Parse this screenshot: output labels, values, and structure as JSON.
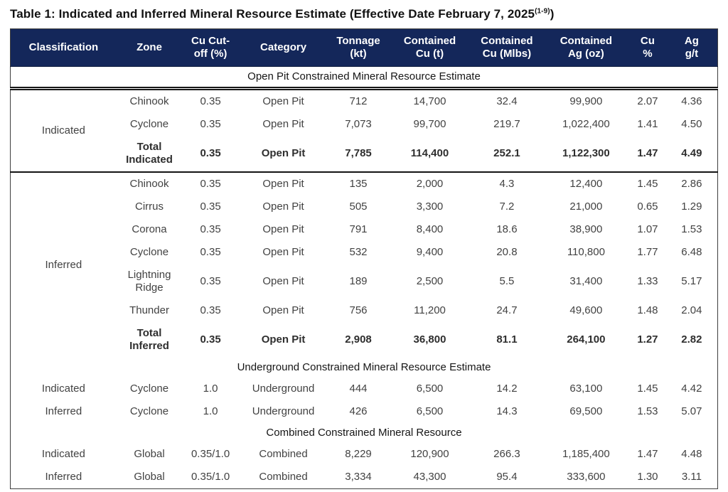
{
  "title": {
    "prefix": "Table 1: Indicated and Inferred Mineral Resource Estimate (Effective Date February 7, 2025",
    "superscript": "(1-9)",
    "suffix": ")"
  },
  "colors": {
    "header_bg": "#14275a",
    "header_text": "#ffffff",
    "body_text": "#424242",
    "rule_color": "#141414"
  },
  "table": {
    "columns": [
      {
        "id": "classification",
        "label": "Classification"
      },
      {
        "id": "zone",
        "label": "Zone"
      },
      {
        "id": "cutoff",
        "label": "Cu Cut-\noff (%)"
      },
      {
        "id": "category",
        "label": "Category"
      },
      {
        "id": "tonnage",
        "label": "Tonnage\n(kt)"
      },
      {
        "id": "cu_t",
        "label": "Contained\nCu (t)"
      },
      {
        "id": "cu_mlbs",
        "label": "Contained\nCu (Mlbs)"
      },
      {
        "id": "ag_oz",
        "label": "Contained\nAg (oz)"
      },
      {
        "id": "cu_pct",
        "label": "Cu\n%"
      },
      {
        "id": "ag_gpt",
        "label": "Ag\ng/t"
      }
    ],
    "sections": [
      {
        "header": "Open Pit Constrained Mineral Resource Estimate",
        "header_double_rule": true,
        "groups": [
          {
            "classification": "Indicated",
            "divider_below": true,
            "rows": [
              {
                "zone": "Chinook",
                "cutoff": "0.35",
                "category": "Open Pit",
                "tonnage": "712",
                "cu_t": "14,700",
                "cu_mlbs": "32.4",
                "ag_oz": "99,900",
                "cu_pct": "2.07",
                "ag_gpt": "4.36"
              },
              {
                "zone": "Cyclone",
                "cutoff": "0.35",
                "category": "Open Pit",
                "tonnage": "7,073",
                "cu_t": "99,700",
                "cu_mlbs": "219.7",
                "ag_oz": "1,022,400",
                "cu_pct": "1.41",
                "ag_gpt": "4.50"
              },
              {
                "zone": "Total\nIndicated",
                "cutoff": "0.35",
                "category": "Open Pit",
                "tonnage": "7,785",
                "cu_t": "114,400",
                "cu_mlbs": "252.1",
                "ag_oz": "1,122,300",
                "cu_pct": "1.47",
                "ag_gpt": "4.49",
                "bold": true,
                "divider_below": true
              }
            ]
          },
          {
            "classification": "Inferred",
            "rows": [
              {
                "zone": "Chinook",
                "cutoff": "0.35",
                "category": "Open Pit",
                "tonnage": "135",
                "cu_t": "2,000",
                "cu_mlbs": "4.3",
                "ag_oz": "12,400",
                "cu_pct": "1.45",
                "ag_gpt": "2.86"
              },
              {
                "zone": "Cirrus",
                "cutoff": "0.35",
                "category": "Open Pit",
                "tonnage": "505",
                "cu_t": "3,300",
                "cu_mlbs": "7.2",
                "ag_oz": "21,000",
                "cu_pct": "0.65",
                "ag_gpt": "1.29"
              },
              {
                "zone": "Corona",
                "cutoff": "0.35",
                "category": "Open Pit",
                "tonnage": "791",
                "cu_t": "8,400",
                "cu_mlbs": "18.6",
                "ag_oz": "38,900",
                "cu_pct": "1.07",
                "ag_gpt": "1.53"
              },
              {
                "zone": "Cyclone",
                "cutoff": "0.35",
                "category": "Open Pit",
                "tonnage": "532",
                "cu_t": "9,400",
                "cu_mlbs": "20.8",
                "ag_oz": "110,800",
                "cu_pct": "1.77",
                "ag_gpt": "6.48"
              },
              {
                "zone": "Lightning\nRidge",
                "cutoff": "0.35",
                "category": "Open Pit",
                "tonnage": "189",
                "cu_t": "2,500",
                "cu_mlbs": "5.5",
                "ag_oz": "31,400",
                "cu_pct": "1.33",
                "ag_gpt": "5.17"
              },
              {
                "zone": "Thunder",
                "cutoff": "0.35",
                "category": "Open Pit",
                "tonnage": "756",
                "cu_t": "11,200",
                "cu_mlbs": "24.7",
                "ag_oz": "49,600",
                "cu_pct": "1.48",
                "ag_gpt": "2.04"
              },
              {
                "zone": "Total\nInferred",
                "cutoff": "0.35",
                "category": "Open Pit",
                "tonnage": "2,908",
                "cu_t": "36,800",
                "cu_mlbs": "81.1",
                "ag_oz": "264,100",
                "cu_pct": "1.27",
                "ag_gpt": "2.82",
                "bold": true
              }
            ]
          }
        ]
      },
      {
        "header": "Underground Constrained Mineral Resource Estimate",
        "groups": [
          {
            "classification": "Indicated",
            "rows": [
              {
                "zone": "Cyclone",
                "cutoff": "1.0",
                "category": "Underground",
                "tonnage": "444",
                "cu_t": "6,500",
                "cu_mlbs": "14.2",
                "ag_oz": "63,100",
                "cu_pct": "1.45",
                "ag_gpt": "4.42"
              }
            ]
          },
          {
            "classification": "Inferred",
            "rows": [
              {
                "zone": "Cyclone",
                "cutoff": "1.0",
                "category": "Underground",
                "tonnage": "426",
                "cu_t": "6,500",
                "cu_mlbs": "14.3",
                "ag_oz": "69,500",
                "cu_pct": "1.53",
                "ag_gpt": "5.07"
              }
            ]
          }
        ]
      },
      {
        "header": "Combined Constrained Mineral Resource",
        "groups": [
          {
            "classification": "Indicated",
            "rows": [
              {
                "zone": "Global",
                "cutoff": "0.35/1.0",
                "category": "Combined",
                "tonnage": "8,229",
                "cu_t": "120,900",
                "cu_mlbs": "266.3",
                "ag_oz": "1,185,400",
                "cu_pct": "1.47",
                "ag_gpt": "4.48"
              }
            ]
          },
          {
            "classification": "Inferred",
            "rows": [
              {
                "zone": "Global",
                "cutoff": "0.35/1.0",
                "category": "Combined",
                "tonnage": "3,334",
                "cu_t": "43,300",
                "cu_mlbs": "95.4",
                "ag_oz": "333,600",
                "cu_pct": "1.30",
                "ag_gpt": "3.11"
              }
            ]
          }
        ]
      }
    ]
  }
}
